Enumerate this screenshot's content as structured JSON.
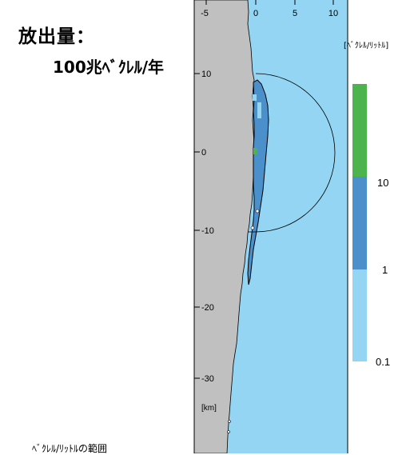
{
  "title": {
    "line1": "放出量：",
    "line2": "100兆ﾍﾞｸﾚﾙ/年"
  },
  "map": {
    "x_ticks": [
      "-5",
      "0",
      "5",
      "10"
    ],
    "y_ticks": [
      "10",
      "0",
      "-10",
      "-20",
      "-30"
    ],
    "axis_unit": "[km]",
    "colors": {
      "land": "#c0c0c0",
      "sea_low": "#93d5f3",
      "sea_mid": "#4b8fcb",
      "sea_high": "#4db34d"
    }
  },
  "legend": {
    "unit": "[ﾍﾞｸﾚﾙ/ﾘｯﾄﾙ]",
    "bands": [
      {
        "range": "> 10",
        "color": "#4db34d"
      },
      {
        "range": "1 - 10",
        "color": "#4b8fcb"
      },
      {
        "range": "0.1 - 1",
        "color": "#93d5f3"
      }
    ],
    "tick_labels": [
      "10",
      "1",
      "0.1"
    ]
  },
  "footer": {
    "text": "ﾍﾞｸﾚﾙ/ﾘｯﾄﾙの範囲"
  }
}
